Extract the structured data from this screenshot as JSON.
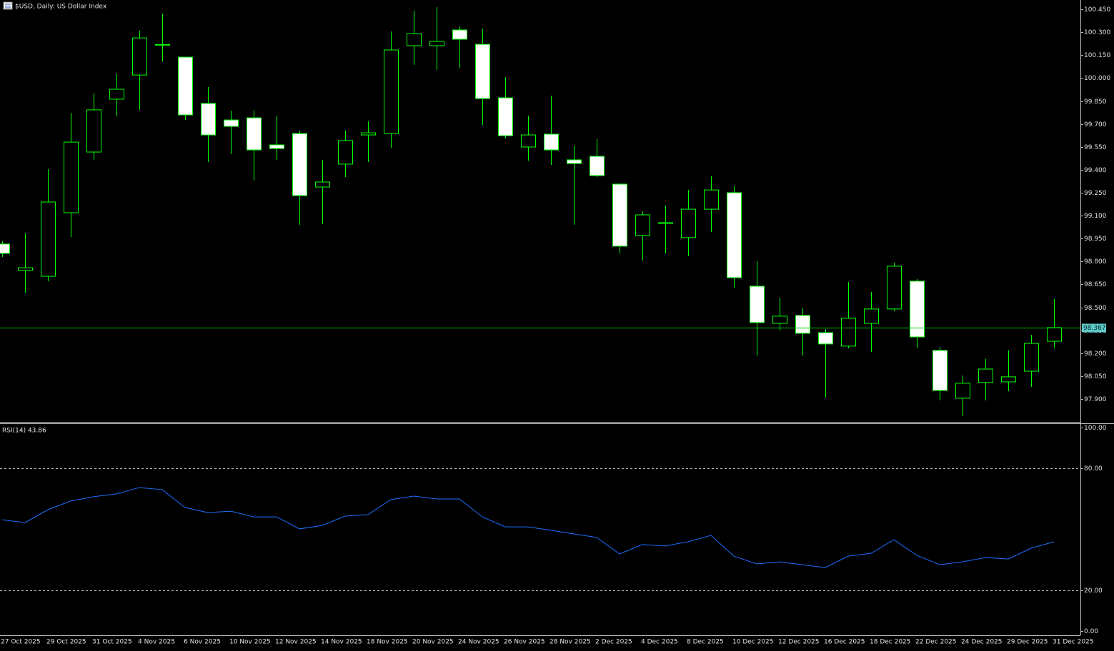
{
  "chart_data": [
    {
      "type": "candlestick",
      "title": "$USD, Daily: US Dollar Index",
      "categories": [
        "27 Oct 2025",
        null,
        "29 Oct 2025",
        null,
        "31 Oct 2025",
        null,
        "4 Nov 2025",
        null,
        "6 Nov 2025",
        null,
        "10 Nov 2025",
        null,
        "12 Nov 2025",
        null,
        "14 Nov 2025",
        null,
        "18 Nov 2025",
        null,
        "20 Nov 2025",
        null,
        "24 Nov 2025",
        null,
        "26 Nov 2025",
        null,
        "28 Nov 2025",
        null,
        "2 Dec 2025",
        null,
        "4 Dec 2025",
        null,
        "8 Dec 2025",
        null,
        "10 Dec 2025",
        null,
        "12 Dec 2025",
        null,
        "16 Dec 2025",
        null,
        "18 Dec 2025",
        null,
        "22 Dec 2025",
        null,
        "24 Dec 2025",
        null,
        "29 Dec 2025",
        null,
        "31 Dec 2025"
      ],
      "open": [
        98.914,
        98.741,
        98.703,
        99.119,
        99.516,
        99.862,
        100.02,
        100.217,
        100.137,
        99.834,
        99.726,
        99.74,
        99.563,
        99.637,
        99.287,
        99.437,
        99.628,
        99.637,
        100.212,
        100.212,
        100.315,
        100.221,
        99.871,
        99.549,
        99.633,
        99.465,
        99.488,
        99.306,
        98.97,
        99.049,
        98.956,
        99.142,
        99.25,
        98.638,
        98.395,
        98.447,
        98.334,
        98.246,
        98.395,
        98.489,
        98.671,
        98.218,
        97.905,
        98.008,
        98.012,
        98.082,
        98.278
      ],
      "high": [
        98.932,
        98.984,
        99.404,
        99.773,
        99.899,
        100.03,
        100.31,
        100.422,
        100.14,
        99.941,
        99.787,
        99.787,
        99.754,
        99.656,
        99.465,
        99.656,
        99.717,
        100.305,
        100.441,
        100.464,
        100.338,
        100.324,
        100.006,
        99.754,
        99.885,
        99.558,
        99.6,
        99.31,
        99.128,
        99.166,
        99.268,
        99.357,
        99.292,
        98.801,
        98.563,
        98.498,
        98.358,
        98.666,
        98.601,
        98.792,
        98.685,
        98.241,
        98.054,
        98.162,
        98.218,
        98.32,
        98.554
      ],
      "low": [
        98.83,
        98.596,
        98.671,
        98.96,
        99.465,
        99.75,
        99.792,
        100.109,
        99.726,
        99.451,
        99.502,
        99.329,
        99.465,
        99.04,
        99.044,
        99.353,
        99.451,
        99.544,
        100.086,
        100.053,
        100.067,
        99.693,
        99.605,
        99.46,
        99.432,
        99.04,
        99.353,
        98.853,
        98.806,
        98.853,
        98.834,
        98.993,
        98.629,
        98.185,
        98.348,
        98.185,
        97.91,
        98.232,
        98.208,
        98.475,
        98.232,
        97.891,
        97.788,
        97.891,
        97.952,
        97.98,
        98.232
      ],
      "close": [
        98.853,
        98.759,
        99.189,
        99.581,
        99.792,
        99.927,
        100.263,
        100.22,
        99.759,
        99.628,
        99.684,
        99.53,
        99.539,
        99.231,
        99.32,
        99.591,
        99.642,
        100.184,
        100.291,
        100.24,
        100.254,
        99.866,
        99.623,
        99.628,
        99.53,
        99.441,
        99.362,
        98.9,
        99.105,
        99.054,
        99.142,
        99.268,
        98.694,
        98.4,
        98.442,
        98.33,
        98.26,
        98.428,
        98.489,
        98.769,
        98.306,
        97.956,
        98.003,
        98.096,
        98.045,
        98.264,
        98.367
      ],
      "colors": {
        "up_body": "#000000",
        "down_body": "#ffffff",
        "wick": "#00ff00"
      },
      "last_price": 98.367,
      "last_price_color": "#00c000",
      "ylim": [
        97.755,
        100.511
      ],
      "yticks": [
        {
          "value": 100.45,
          "label": "100.450"
        },
        {
          "value": 100.3,
          "label": "100.300"
        },
        {
          "value": 100.15,
          "label": "100.150"
        },
        {
          "value": 100.0,
          "label": "100.000"
        },
        {
          "value": 99.85,
          "label": "99.850"
        },
        {
          "value": 99.7,
          "label": "99.700"
        },
        {
          "value": 99.55,
          "label": "99.550"
        },
        {
          "value": 99.4,
          "label": "99.400"
        },
        {
          "value": 99.25,
          "label": "99.250"
        },
        {
          "value": 99.1,
          "label": "99.100"
        },
        {
          "value": 98.95,
          "label": "98.950"
        },
        {
          "value": 98.8,
          "label": "98.800"
        },
        {
          "value": 98.65,
          "label": "98.650"
        },
        {
          "value": 98.5,
          "label": "98.500"
        },
        {
          "value": 98.35,
          "label": "98.350"
        },
        {
          "value": 98.2,
          "label": "98.200"
        },
        {
          "value": 98.05,
          "label": "98.050"
        },
        {
          "value": 97.9,
          "label": "97.900"
        }
      ]
    },
    {
      "type": "line",
      "title": "RSI(14) 43.86",
      "values": [
        54.7,
        53.3,
        59.6,
        63.9,
        66.0,
        67.4,
        70.5,
        69.5,
        60.7,
        58.2,
        58.9,
        56.1,
        56.1,
        50.2,
        51.9,
        56.5,
        57.2,
        64.6,
        66.3,
        64.9,
        64.9,
        56.1,
        51.2,
        51.2,
        49.5,
        47.7,
        46.0,
        37.9,
        42.5,
        41.8,
        43.9,
        47.0,
        36.8,
        33.0,
        34.0,
        32.6,
        31.2,
        36.8,
        38.2,
        44.9,
        37.2,
        32.6,
        34.0,
        36.1,
        35.4,
        40.7,
        43.86
      ],
      "color": "#1e6fff",
      "levels": [
        80,
        20
      ],
      "ylim": [
        0,
        100
      ],
      "yticks": [
        {
          "value": 100,
          "label": "100.00"
        },
        {
          "value": 80,
          "label": "80.00"
        },
        {
          "value": 20,
          "label": "20.00"
        },
        {
          "value": 0,
          "label": "0.00"
        }
      ]
    }
  ]
}
